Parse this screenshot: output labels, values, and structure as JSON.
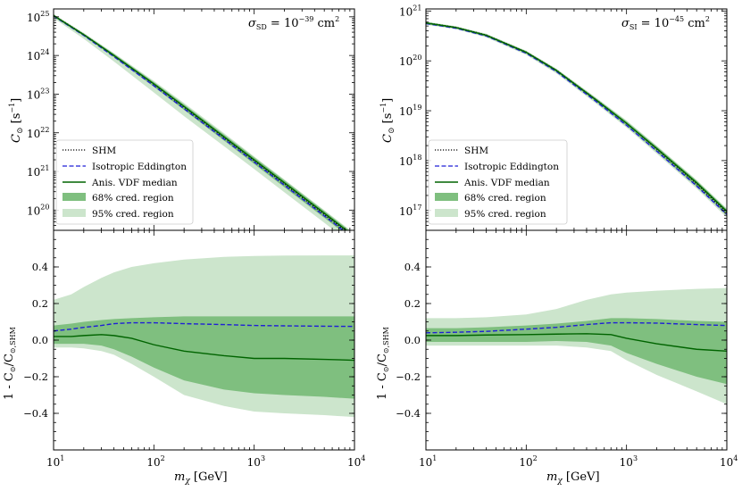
{
  "chart_data": [
    {
      "type": "line",
      "panel": "top-left",
      "annotation": "σ_SD = 10^-39 cm^2",
      "ylabel": "C_⊙ [s^-1]",
      "xlabel": "",
      "xscale": "log",
      "yscale": "log",
      "xlim": [
        10,
        10000
      ],
      "ylim": [
        3e+19,
        1.6e+25
      ],
      "xticks": [
        {
          "v": 10,
          "b": "10",
          "e": "1"
        },
        {
          "v": 100,
          "b": "10",
          "e": "2"
        },
        {
          "v": 1000,
          "b": "10",
          "e": "3"
        },
        {
          "v": 10000,
          "b": "10",
          "e": "4"
        }
      ],
      "yticks": [
        {
          "v": 1e+20,
          "b": "10",
          "e": "20"
        },
        {
          "v": 1e+21,
          "b": "10",
          "e": "21"
        },
        {
          "v": 1e+22,
          "b": "10",
          "e": "22"
        },
        {
          "v": 1e+23,
          "b": "10",
          "e": "23"
        },
        {
          "v": 1e+24,
          "b": "10",
          "e": "24"
        },
        {
          "v": 1e+25,
          "b": "10",
          "e": "25"
        }
      ],
      "legend_position": "lower-left",
      "x": [
        10,
        20,
        40,
        100,
        200,
        500,
        1000,
        2000,
        5000,
        10000
      ],
      "series": [
        {
          "name": "SHM",
          "style": "dotted",
          "values": [
            1.1e+25,
            3.5e+24,
            1e+24,
            1.8e+23,
            4.6e+22,
            7.5e+21,
            1.9e+21,
            4.8e+20,
            7.7e+19,
            1.9e+19
          ]
        },
        {
          "name": "Isotropic Eddington",
          "style": "dashed",
          "values": [
            1.05e+25,
            3.3e+24,
            9.3e+23,
            1.65e+23,
            4.2e+22,
            6.9e+21,
            1.75e+21,
            4.4e+20,
            7.1e+19,
            1.78e+19
          ]
        },
        {
          "name": "Anis. VDF median",
          "style": "solid",
          "values": [
            1.08e+25,
            3.45e+24,
            1e+24,
            1.85e+23,
            4.8e+22,
            7.9e+21,
            2e+21,
            5.1e+20,
            8.3e+19,
            2.06e+19
          ]
        }
      ],
      "band68": {
        "name": "68% cred. region",
        "lower": [
          1e+25,
          3.2e+24,
          9e+23,
          1.55e+23,
          3.9e+22,
          6.3e+21,
          1.55e+21,
          3.9e+20,
          6.3e+19,
          1.58e+19
        ],
        "upper": [
          1.13e+25,
          3.65e+24,
          1.1e+24,
          2.05e+23,
          5.4e+22,
          9e+21,
          2.3e+21,
          5.9e+20,
          9.5e+19,
          2.35e+19
        ]
      },
      "band95": {
        "name": "95% cred. region",
        "lower": [
          9.3e+24,
          2.7e+24,
          7e+23,
          1.1e+23,
          2.7e+22,
          4.5e+21,
          1.15e+21,
          2.9e+20,
          4.7e+19,
          1.17e+19
        ],
        "upper": [
          1.18e+25,
          3.85e+24,
          1.15e+24,
          2.2e+23,
          5.9e+22,
          9.8e+21,
          2.45e+21,
          6.2e+20,
          1e+20,
          2.5e+19
        ]
      }
    },
    {
      "type": "line",
      "panel": "top-right",
      "annotation": "σ_SI = 10^-45 cm^2",
      "ylabel": "C_⊙ [s^-1]",
      "xlabel": "",
      "xscale": "log",
      "yscale": "log",
      "xlim": [
        10,
        10000
      ],
      "ylim": [
        4e+16,
        1.1e+21
      ],
      "xticks": [
        {
          "v": 10,
          "b": "10",
          "e": "1"
        },
        {
          "v": 100,
          "b": "10",
          "e": "2"
        },
        {
          "v": 1000,
          "b": "10",
          "e": "3"
        },
        {
          "v": 10000,
          "b": "10",
          "e": "4"
        }
      ],
      "yticks": [
        {
          "v": 1e+17,
          "b": "10",
          "e": "17"
        },
        {
          "v": 1e+18,
          "b": "10",
          "e": "18"
        },
        {
          "v": 1e+19,
          "b": "10",
          "e": "19"
        },
        {
          "v": 1e+20,
          "b": "10",
          "e": "20"
        },
        {
          "v": 1e+21,
          "b": "10",
          "e": "21"
        }
      ],
      "legend_position": "lower-left",
      "x": [
        10,
        20,
        40,
        100,
        200,
        500,
        1000,
        2000,
        5000,
        10000
      ],
      "series": [
        {
          "name": "SHM",
          "style": "dotted",
          "values": [
            5.8e+20,
            4.7e+20,
            3.3e+20,
            1.5e+20,
            6.5e+19,
            1.65e+19,
            5.6e+18,
            1.7e+18,
            3.4e+17,
            9e+16
          ]
        },
        {
          "name": "Isotropic Eddington",
          "style": "dashed",
          "values": [
            5.6e+20,
            4.5e+20,
            3.15e+20,
            1.42e+20,
            6.1e+19,
            1.52e+19,
            5.1e+18,
            1.55e+18,
            3.1e+17,
            8.3e+16
          ]
        },
        {
          "name": "Anis. VDF median",
          "style": "solid",
          "values": [
            5.75e+20,
            4.65e+20,
            3.25e+20,
            1.48e+20,
            6.4e+19,
            1.63e+19,
            5.6e+18,
            1.75e+18,
            3.6e+17,
            9.6e+16
          ]
        }
      ],
      "band68": {
        "name": "68% cred. region",
        "lower": [
          5.5e+20,
          4.45e+20,
          3.1e+20,
          1.4e+20,
          6e+19,
          1.5e+19,
          5e+18,
          1.5e+18,
          3e+17,
          8e+16
        ],
        "upper": [
          6e+20,
          4.85e+20,
          3.4e+20,
          1.56e+20,
          6.8e+19,
          1.76e+19,
          6.1e+18,
          1.92e+18,
          3.95e+17,
          1.05e+17
        ]
      },
      "band95": {
        "name": "95% cred. region",
        "lower": [
          5.3e+20,
          4.3e+20,
          2.95e+20,
          1.32e+20,
          5.6e+19,
          1.38e+19,
          4.6e+18,
          1.38e+18,
          2.75e+17,
          7.2e+16
        ],
        "upper": [
          6.15e+20,
          4.95e+20,
          3.5e+20,
          1.6e+20,
          7e+19,
          1.82e+19,
          6.4e+18,
          2e+18,
          4.1e+17,
          1.1e+17
        ]
      }
    },
    {
      "type": "line",
      "panel": "bottom-left",
      "ylabel": "1 - C_⊙/C_⊙,SHM",
      "xlabel": "m_χ [GeV]",
      "xscale": "log",
      "yscale": "linear",
      "xlim": [
        10,
        10000
      ],
      "ylim": [
        -0.6,
        0.6
      ],
      "xticks": [
        {
          "v": 10,
          "b": "10",
          "e": "1"
        },
        {
          "v": 100,
          "b": "10",
          "e": "2"
        },
        {
          "v": 1000,
          "b": "10",
          "e": "3"
        },
        {
          "v": 10000,
          "b": "10",
          "e": "4"
        }
      ],
      "yticks": [
        {
          "v": -0.4,
          "t": "−0.4"
        },
        {
          "v": -0.2,
          "t": "−0.2"
        },
        {
          "v": 0.0,
          "t": "0.0"
        },
        {
          "v": 0.2,
          "t": "0.2"
        },
        {
          "v": 0.4,
          "t": "0.4"
        }
      ],
      "x": [
        10,
        15,
        20,
        30,
        40,
        60,
        100,
        200,
        500,
        1000,
        2000,
        5000,
        10000
      ],
      "series": [
        {
          "name": "Isotropic Eddington",
          "style": "dashed",
          "values": [
            0.05,
            0.06,
            0.07,
            0.08,
            0.09,
            0.095,
            0.095,
            0.09,
            0.085,
            0.08,
            0.078,
            0.076,
            0.075
          ]
        },
        {
          "name": "Anis. VDF median",
          "style": "solid",
          "values": [
            0.02,
            0.02,
            0.025,
            0.03,
            0.025,
            0.01,
            -0.025,
            -0.06,
            -0.085,
            -0.1,
            -0.1,
            -0.105,
            -0.11
          ]
        }
      ],
      "band68": {
        "lower": [
          -0.02,
          -0.02,
          -0.02,
          -0.03,
          -0.05,
          -0.09,
          -0.15,
          -0.22,
          -0.27,
          -0.29,
          -0.3,
          -0.31,
          -0.32
        ],
        "upper": [
          0.08,
          0.09,
          0.1,
          0.11,
          0.115,
          0.12,
          0.125,
          0.13,
          0.13,
          0.13,
          0.13,
          0.13,
          0.13
        ]
      },
      "band95": {
        "lower": [
          -0.04,
          -0.04,
          -0.045,
          -0.06,
          -0.08,
          -0.13,
          -0.2,
          -0.3,
          -0.36,
          -0.39,
          -0.4,
          -0.41,
          -0.42
        ],
        "upper": [
          0.22,
          0.25,
          0.29,
          0.34,
          0.37,
          0.4,
          0.42,
          0.44,
          0.455,
          0.46,
          0.462,
          0.463,
          0.463
        ]
      }
    },
    {
      "type": "line",
      "panel": "bottom-right",
      "ylabel": "1 - C_⊙/C_⊙,SHM",
      "xlabel": "m_χ [GeV]",
      "xscale": "log",
      "yscale": "linear",
      "xlim": [
        10,
        10000
      ],
      "ylim": [
        -0.6,
        0.6
      ],
      "xticks": [
        {
          "v": 10,
          "b": "10",
          "e": "1"
        },
        {
          "v": 100,
          "b": "10",
          "e": "2"
        },
        {
          "v": 1000,
          "b": "10",
          "e": "3"
        },
        {
          "v": 10000,
          "b": "10",
          "e": "4"
        }
      ],
      "yticks": [
        {
          "v": -0.4,
          "t": "−0.4"
        },
        {
          "v": -0.2,
          "t": "−0.2"
        },
        {
          "v": 0.0,
          "t": "0.0"
        },
        {
          "v": 0.2,
          "t": "0.2"
        },
        {
          "v": 0.4,
          "t": "0.4"
        }
      ],
      "x": [
        10,
        20,
        40,
        100,
        200,
        400,
        700,
        1000,
        2000,
        5000,
        10000
      ],
      "series": [
        {
          "name": "Isotropic Eddington",
          "style": "dashed",
          "values": [
            0.04,
            0.043,
            0.048,
            0.06,
            0.07,
            0.085,
            0.095,
            0.095,
            0.093,
            0.085,
            0.08
          ]
        },
        {
          "name": "Anis. VDF median",
          "style": "solid",
          "values": [
            0.025,
            0.025,
            0.028,
            0.03,
            0.033,
            0.035,
            0.03,
            0.01,
            -0.02,
            -0.05,
            -0.06
          ]
        }
      ],
      "band68": {
        "lower": [
          -0.01,
          -0.01,
          -0.01,
          -0.01,
          -0.005,
          -0.01,
          -0.03,
          -0.07,
          -0.13,
          -0.2,
          -0.24
        ],
        "upper": [
          0.065,
          0.065,
          0.07,
          0.08,
          0.09,
          0.105,
          0.12,
          0.12,
          0.115,
          0.105,
          0.1
        ]
      },
      "band95": {
        "lower": [
          -0.03,
          -0.03,
          -0.03,
          -0.03,
          -0.03,
          -0.04,
          -0.06,
          -0.11,
          -0.19,
          -0.28,
          -0.35
        ],
        "upper": [
          0.12,
          0.12,
          0.125,
          0.14,
          0.17,
          0.22,
          0.25,
          0.26,
          0.27,
          0.28,
          0.285
        ]
      }
    }
  ],
  "legend": {
    "shm": "SHM",
    "iso": "Isotropic Eddington",
    "anis": "Anis. VDF median",
    "c68": "68% cred. region",
    "c95": "95% cred. region"
  },
  "labels": {
    "sigma_sd_prefix": "σ",
    "sigma_sd_sub": "SD",
    "sigma_sd_eq": " = 10",
    "sigma_sd_exp": "−39",
    "sigma_sd_unit": " cm",
    "sigma_sd_unit_exp": "2",
    "sigma_si_prefix": "σ",
    "sigma_si_sub": "SI",
    "sigma_si_eq": " = 10",
    "sigma_si_exp": "−45",
    "sigma_si_unit": " cm",
    "sigma_si_unit_exp": "2",
    "ytop_main": "C",
    "ytop_sub": "⊙",
    "ytop_unit": " [s",
    "ytop_unit_exp": "−1",
    "ytop_close": "]",
    "ybot_main": "1 - C",
    "ybot_sub1": "⊙",
    "ybot_slash": "/C",
    "ybot_sub2": "⊙,SHM",
    "xlabel_m": "m",
    "xlabel_sub": "χ",
    "xlabel_unit": " [GeV]"
  },
  "colors": {
    "band95": "#cce5cc",
    "band68": "#7fbf7f",
    "median": "#006400",
    "iso": "#1f1fd6",
    "shm": "#000000"
  }
}
